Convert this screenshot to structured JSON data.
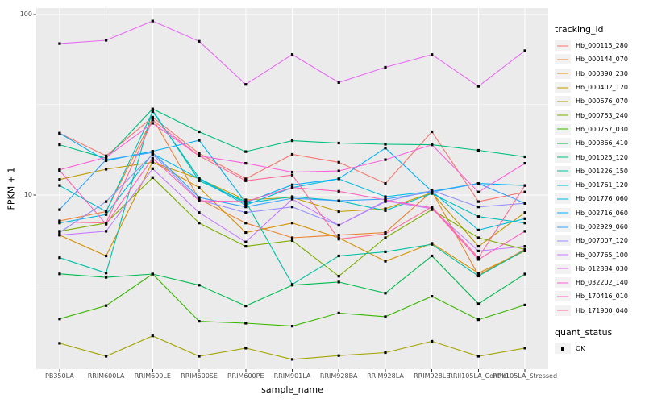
{
  "figure": {
    "background": "#FFFFFF",
    "panel_background": "#EBEBEB",
    "gridline_color": "#FFFFFF",
    "axis_text_color": "#4D4D4D",
    "tick_color": "#333333",
    "point_color": "#000000",
    "legend_key_background": "#F2F2F2"
  },
  "legend": {
    "tracking_title": "tracking_id",
    "quant_title": "quant_status",
    "quant_items": [
      {
        "label": "OK",
        "symbol": "black-square"
      }
    ]
  },
  "chart_data": {
    "type": "line",
    "title": "",
    "xlabel": "sample_name",
    "ylabel": "FPKM + 1",
    "yscale": "log10",
    "ylim": [
      1.08,
      108
    ],
    "yticks": [
      100,
      10
    ],
    "minor_gridlines": [
      31.623,
      3.1623
    ],
    "grid": true,
    "legend_position": "right",
    "point_shape": "square",
    "categories": [
      "PB350LA",
      "RRIM600LA",
      "RRIM600LE",
      "RRIM600SE",
      "RRIM600PE",
      "RRIM901LA",
      "RRIM928BA",
      "RRIM928LA",
      "RRIM928LE",
      "RRII105LA_Control",
      "RRII105LA_Stressed"
    ],
    "series": [
      {
        "name": "Hb_000115_280",
        "color": "#F8766D",
        "values": [
          22.0,
          16.5,
          27.0,
          17.0,
          12.3,
          16.8,
          15.2,
          11.6,
          22.4,
          9.2,
          10.4
        ]
      },
      {
        "name": "Hb_000144_070",
        "color": "#EA8331",
        "values": [
          7.2,
          8.1,
          26.7,
          9.5,
          7.0,
          5.8,
          6.0,
          6.2,
          10.5,
          3.6,
          5.0
        ]
      },
      {
        "name": "Hb_000390_230",
        "color": "#D89000",
        "values": [
          6.0,
          4.6,
          15.3,
          11.0,
          6.2,
          7.0,
          5.8,
          4.3,
          5.4,
          3.7,
          4.9
        ]
      },
      {
        "name": "Hb_000402_120",
        "color": "#C09B00",
        "values": [
          12.2,
          13.9,
          15.2,
          12.3,
          9.4,
          9.7,
          8.1,
          8.4,
          10.3,
          5.2,
          8.0
        ]
      },
      {
        "name": "Hb_000676_070",
        "color": "#A3A500",
        "values": [
          1.51,
          1.28,
          1.66,
          1.28,
          1.42,
          1.23,
          1.29,
          1.34,
          1.55,
          1.28,
          1.42
        ]
      },
      {
        "name": "Hb_000753_240",
        "color": "#7CAE00",
        "values": [
          6.3,
          7.0,
          12.5,
          7.0,
          5.2,
          5.6,
          3.55,
          5.8,
          8.3,
          5.8,
          5.0
        ]
      },
      {
        "name": "Hb_000757_030",
        "color": "#39B600",
        "values": [
          2.06,
          2.44,
          3.65,
          2.0,
          1.95,
          1.88,
          2.22,
          2.12,
          2.75,
          2.04,
          2.46
        ]
      },
      {
        "name": "Hb_000866_410",
        "color": "#00BB4E",
        "values": [
          3.66,
          3.5,
          3.65,
          3.17,
          2.43,
          3.17,
          3.3,
          2.86,
          4.6,
          2.5,
          3.65
        ]
      },
      {
        "name": "Hb_001025_120",
        "color": "#00BF7D",
        "values": [
          19.0,
          16.0,
          30.0,
          22.4,
          17.4,
          20.0,
          19.4,
          19.1,
          19.0,
          17.7,
          16.3
        ]
      },
      {
        "name": "Hb_001226_150",
        "color": "#00C1A3",
        "values": [
          4.5,
          3.7,
          29.5,
          12.0,
          9.2,
          3.2,
          4.6,
          4.85,
          5.33,
          3.56,
          4.95
        ]
      },
      {
        "name": "Hb_001761_120",
        "color": "#00BFC4",
        "values": [
          11.3,
          8.1,
          29.0,
          12.4,
          9.0,
          9.8,
          9.3,
          8.2,
          10.2,
          7.6,
          7.0
        ]
      },
      {
        "name": "Hb_001776_060",
        "color": "#00BAE0",
        "values": [
          7.0,
          7.8,
          17.0,
          12.3,
          8.8,
          11.0,
          12.3,
          9.8,
          10.5,
          6.4,
          7.4
        ]
      },
      {
        "name": "Hb_002716_060",
        "color": "#00B0F6",
        "values": [
          22.0,
          15.5,
          17.5,
          20.1,
          9.1,
          11.4,
          12.3,
          18.2,
          10.5,
          11.6,
          11.3
        ]
      },
      {
        "name": "Hb_002929_060",
        "color": "#35A2FF",
        "values": [
          8.3,
          15.7,
          17.2,
          9.7,
          8.6,
          9.6,
          9.3,
          9.5,
          10.4,
          11.6,
          9.0
        ]
      },
      {
        "name": "Hb_007007_120",
        "color": "#9590FF",
        "values": [
          6.2,
          9.2,
          16.8,
          9.4,
          8.0,
          8.6,
          6.8,
          9.2,
          10.6,
          8.6,
          9.0
        ]
      },
      {
        "name": "Hb_007765_100",
        "color": "#C77CFF",
        "values": [
          6.0,
          6.3,
          14.0,
          8.0,
          5.5,
          9.5,
          6.8,
          9.3,
          8.4,
          4.9,
          5.2
        ]
      },
      {
        "name": "Hb_012384_030",
        "color": "#E76BF3",
        "values": [
          69.0,
          72.0,
          92.0,
          71.0,
          41.0,
          60.0,
          42.0,
          51.0,
          60.0,
          40.0,
          63.0
        ]
      },
      {
        "name": "Hb_032202_140",
        "color": "#FA62DB",
        "values": [
          13.8,
          16.2,
          25.0,
          16.5,
          15.0,
          13.4,
          13.6,
          15.7,
          19.0,
          10.4,
          15.0
        ]
      },
      {
        "name": "Hb_170416_010",
        "color": "#FF62BC",
        "values": [
          13.7,
          6.9,
          16.0,
          9.3,
          9.2,
          11.0,
          10.5,
          9.4,
          8.5,
          4.4,
          6.3
        ]
      },
      {
        "name": "Hb_171900_040",
        "color": "#FF6A98",
        "values": [
          7.1,
          7.0,
          26.0,
          16.5,
          12.0,
          12.9,
          5.7,
          6.1,
          8.6,
          4.5,
          11.3
        ]
      }
    ]
  }
}
